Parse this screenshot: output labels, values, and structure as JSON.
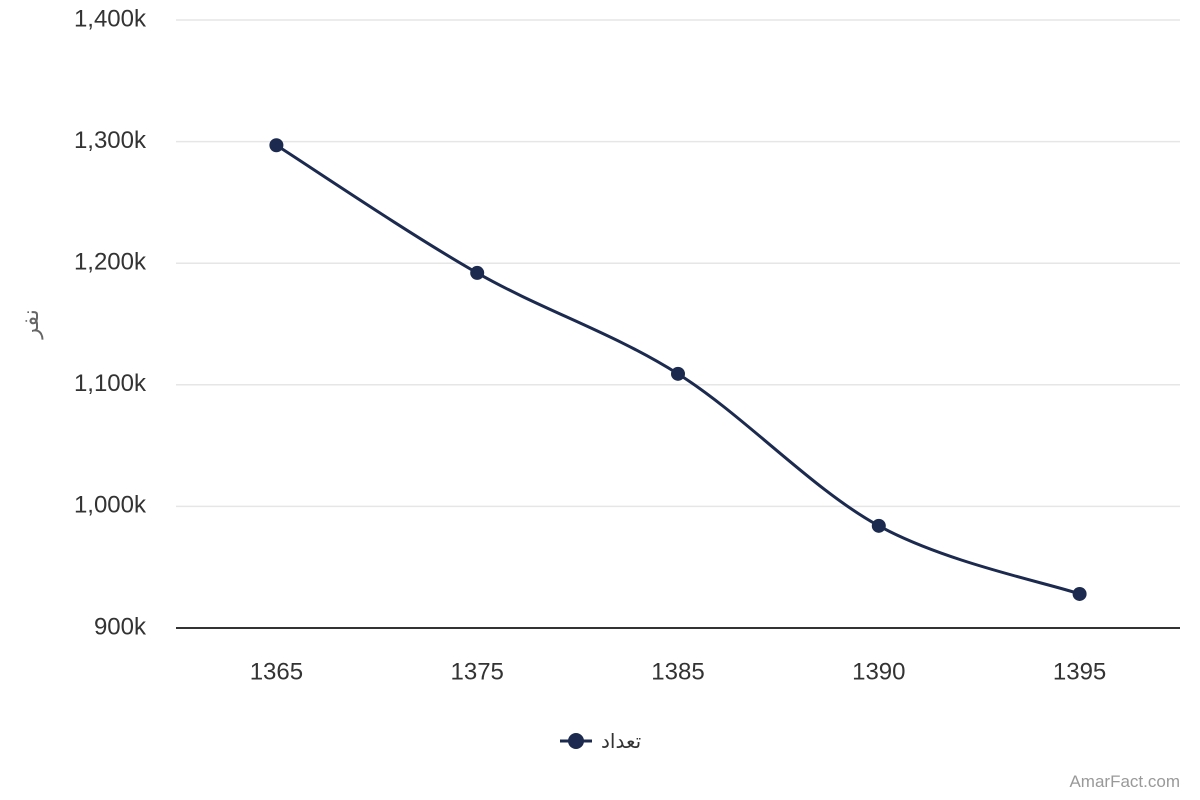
{
  "chart_data": {
    "type": "line",
    "x": [
      "1365",
      "1375",
      "1385",
      "1390",
      "1395"
    ],
    "series": [
      {
        "name": "تعداد",
        "values": [
          1297000,
          1192000,
          1109000,
          984000,
          928000
        ]
      }
    ],
    "ylim": [
      900000,
      1400000
    ],
    "yticks": [
      "900k",
      "1,000k",
      "1,100k",
      "1,200k",
      "1,300k",
      "1,400k"
    ],
    "ylabel": "نفر",
    "xlabel": "",
    "grid": true,
    "legend": "bottom-center",
    "colors": {
      "line": "#1b2a4e",
      "grid": "#e6e6e6",
      "axis": "#333333"
    }
  },
  "credit": "AmarFact.com"
}
